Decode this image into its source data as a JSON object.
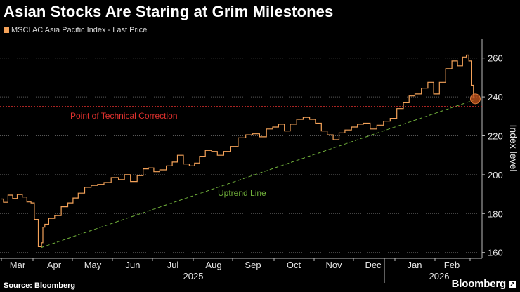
{
  "header": {
    "title": "Asian Stocks Are Staring at Grim Milestones",
    "legend_label": "MSCI AC Asia Pacific Index - Last Price"
  },
  "footer": {
    "source": "Source: Bloomberg",
    "brand": "Bloomberg"
  },
  "colors": {
    "series": "#f4a259",
    "correction_line": "#e0312e",
    "uptrend_line": "#6fae3a",
    "marker": "#c8561c"
  },
  "chart_data": {
    "type": "line",
    "title": "Asian Stocks Are Staring at Grim Milestones",
    "ylabel": "Index level",
    "ylim": [
      157,
      270
    ],
    "yticks": [
      160,
      180,
      200,
      220,
      240,
      260
    ],
    "months": [
      "Mar",
      "Apr",
      "May",
      "Jun",
      "Jul",
      "Aug",
      "Sep",
      "Oct",
      "Nov",
      "Dec",
      "Jan",
      "Feb"
    ],
    "years": [
      {
        "label": "2025",
        "after_month": "Jul"
      },
      {
        "label": "2026",
        "after_month": "Jan"
      }
    ],
    "series": [
      {
        "name": "MSCI AC Asia Pacific Index - Last Price",
        "points": [
          [
            "Mar-01",
            187.5
          ],
          [
            "Mar-05",
            185.8
          ],
          [
            "Mar-10",
            189.5
          ],
          [
            "Mar-14",
            187.8
          ],
          [
            "Mar-19",
            189.8
          ],
          [
            "Mar-24",
            188.5
          ],
          [
            "Mar-28",
            186.0
          ],
          [
            "Apr-01",
            185.5
          ],
          [
            "Apr-03",
            177.0
          ],
          [
            "Apr-07",
            163.0
          ],
          [
            "Apr-08",
            165.0
          ],
          [
            "Apr-09",
            173.0
          ],
          [
            "Apr-11",
            174.5
          ],
          [
            "Apr-15",
            177.5
          ],
          [
            "Apr-20",
            179.0
          ],
          [
            "Apr-25",
            183.5
          ],
          [
            "Apr-30",
            185.5
          ],
          [
            "May-03",
            188.0
          ],
          [
            "May-08",
            190.5
          ],
          [
            "May-13",
            193.5
          ],
          [
            "May-18",
            194.5
          ],
          [
            "May-23",
            195.0
          ],
          [
            "May-28",
            196.0
          ],
          [
            "Jun-03",
            198.5
          ],
          [
            "Jun-08",
            197.5
          ],
          [
            "Jun-12",
            200.0
          ],
          [
            "Jun-17",
            196.5
          ],
          [
            "Jun-22",
            199.5
          ],
          [
            "Jun-26",
            203.0
          ],
          [
            "Jun-30",
            203.5
          ],
          [
            "Jul-04",
            201.5
          ],
          [
            "Jul-09",
            202.5
          ],
          [
            "Jul-14",
            204.5
          ],
          [
            "Jul-18",
            206.5
          ],
          [
            "Jul-22",
            210.0
          ],
          [
            "Jul-27",
            205.5
          ],
          [
            "Jul-31",
            204.5
          ],
          [
            "Aug-04",
            206.0
          ],
          [
            "Aug-08",
            209.5
          ],
          [
            "Aug-13",
            212.5
          ],
          [
            "Aug-18",
            212.0
          ],
          [
            "Aug-22",
            210.0
          ],
          [
            "Aug-28",
            212.0
          ],
          [
            "Sep-02",
            214.5
          ],
          [
            "Sep-08",
            219.0
          ],
          [
            "Sep-13",
            220.5
          ],
          [
            "Sep-18",
            221.0
          ],
          [
            "Sep-23",
            219.5
          ],
          [
            "Sep-28",
            223.5
          ],
          [
            "Oct-02",
            224.5
          ],
          [
            "Oct-07",
            226.0
          ],
          [
            "Oct-11",
            222.5
          ],
          [
            "Oct-16",
            226.0
          ],
          [
            "Oct-21",
            228.5
          ],
          [
            "Oct-26",
            229.5
          ],
          [
            "Oct-31",
            228.5
          ],
          [
            "Nov-04",
            226.5
          ],
          [
            "Nov-09",
            222.5
          ],
          [
            "Nov-13",
            220.5
          ],
          [
            "Nov-18",
            218.0
          ],
          [
            "Nov-22",
            221.5
          ],
          [
            "Nov-27",
            223.0
          ],
          [
            "Dec-02",
            224.5
          ],
          [
            "Dec-06",
            226.0
          ],
          [
            "Dec-11",
            226.5
          ],
          [
            "Dec-16",
            223.5
          ],
          [
            "Dec-21",
            225.5
          ],
          [
            "Dec-26",
            227.5
          ],
          [
            "Dec-31",
            229.0
          ],
          [
            "Jan-05",
            234.0
          ],
          [
            "Jan-10",
            237.0
          ],
          [
            "Jan-14",
            240.5
          ],
          [
            "Jan-19",
            241.5
          ],
          [
            "Jan-24",
            244.5
          ],
          [
            "Jan-29",
            247.5
          ],
          [
            "Feb-02",
            241.5
          ],
          [
            "Feb-07",
            247.5
          ],
          [
            "Feb-12",
            254.5
          ],
          [
            "Feb-17",
            258.5
          ],
          [
            "Feb-21",
            256.0
          ],
          [
            "Feb-25",
            260.5
          ],
          [
            "Feb-27",
            261.5
          ],
          [
            "Mar-01",
            258.5
          ],
          [
            "Mar-03",
            246.0
          ],
          [
            "Mar-05",
            239.5
          ]
        ]
      }
    ],
    "reference_lines": [
      {
        "name": "Point of Technical Correction",
        "value": 235,
        "style": "dotted"
      }
    ],
    "trend_lines": [
      {
        "name": "Uptrend Line",
        "from": [
          "Apr-07",
          162.5
        ],
        "to": [
          "Mar-05",
          238.5
        ],
        "style": "dashed"
      }
    ],
    "marker": {
      "date": "Mar-05",
      "value": 239.0
    },
    "annotations": [
      "Point of Technical Correction",
      "Uptrend Line"
    ]
  }
}
